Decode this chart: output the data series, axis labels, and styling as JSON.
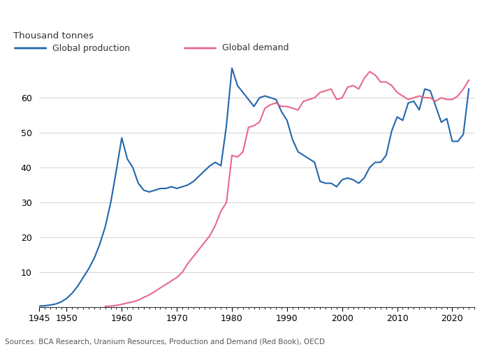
{
  "ylabel": "Thousand tonnes",
  "source": "Sources: BCA Research, Uranium Resources, Production and Demand (Red Book), OECD",
  "production_color": "#2166ac",
  "demand_color": "#e8688a",
  "ylim": [
    0,
    70
  ],
  "xlim": [
    1945,
    2024
  ],
  "yticks": [
    10,
    20,
    30,
    40,
    50,
    60
  ],
  "xticks": [
    1945,
    1950,
    1960,
    1970,
    1980,
    1990,
    2000,
    2010,
    2020
  ],
  "production": {
    "years": [
      1945,
      1946,
      1947,
      1948,
      1949,
      1950,
      1951,
      1952,
      1953,
      1954,
      1955,
      1956,
      1957,
      1958,
      1959,
      1960,
      1961,
      1962,
      1963,
      1964,
      1965,
      1966,
      1967,
      1968,
      1969,
      1970,
      1971,
      1972,
      1973,
      1974,
      1975,
      1976,
      1977,
      1978,
      1979,
      1980,
      1981,
      1982,
      1983,
      1984,
      1985,
      1986,
      1987,
      1988,
      1989,
      1990,
      1991,
      1992,
      1993,
      1994,
      1995,
      1996,
      1997,
      1998,
      1999,
      2000,
      2001,
      2002,
      2003,
      2004,
      2005,
      2006,
      2007,
      2008,
      2009,
      2010,
      2011,
      2012,
      2013,
      2014,
      2015,
      2016,
      2017,
      2018,
      2019,
      2020,
      2021,
      2022,
      2023
    ],
    "values": [
      0.3,
      0.4,
      0.6,
      0.9,
      1.5,
      2.5,
      4.0,
      6.0,
      8.5,
      11.0,
      14.0,
      18.0,
      23.0,
      30.0,
      39.0,
      48.5,
      42.5,
      40.0,
      35.5,
      33.5,
      33.0,
      33.5,
      34.0,
      34.0,
      34.5,
      34.0,
      34.5,
      35.0,
      36.0,
      37.5,
      39.0,
      40.5,
      41.5,
      40.5,
      52.0,
      68.5,
      63.5,
      61.5,
      59.5,
      57.5,
      60.0,
      60.5,
      60.0,
      59.5,
      56.0,
      53.5,
      48.0,
      44.5,
      43.5,
      42.5,
      41.5,
      36.0,
      35.5,
      35.5,
      34.5,
      36.5,
      37.0,
      36.5,
      35.5,
      37.0,
      40.0,
      41.5,
      41.5,
      43.5,
      50.5,
      54.5,
      53.5,
      58.5,
      59.0,
      56.5,
      62.5,
      62.0,
      57.5,
      53.0,
      54.0,
      47.5,
      47.5,
      49.5,
      62.5
    ]
  },
  "demand": {
    "years": [
      1957,
      1958,
      1959,
      1960,
      1961,
      1962,
      1963,
      1964,
      1965,
      1966,
      1967,
      1968,
      1969,
      1970,
      1971,
      1972,
      1973,
      1974,
      1975,
      1976,
      1977,
      1978,
      1979,
      1980,
      1981,
      1982,
      1983,
      1984,
      1985,
      1986,
      1987,
      1988,
      1989,
      1990,
      1991,
      1992,
      1993,
      1994,
      1995,
      1996,
      1997,
      1998,
      1999,
      2000,
      2001,
      2002,
      2003,
      2004,
      2005,
      2006,
      2007,
      2008,
      2009,
      2010,
      2011,
      2012,
      2013,
      2014,
      2015,
      2016,
      2017,
      2018,
      2019,
      2020,
      2021,
      2022,
      2023
    ],
    "values": [
      0.2,
      0.3,
      0.5,
      0.8,
      1.2,
      1.5,
      2.0,
      2.8,
      3.5,
      4.5,
      5.5,
      6.5,
      7.5,
      8.5,
      10.0,
      12.5,
      14.5,
      16.5,
      18.5,
      20.5,
      23.5,
      27.5,
      30.0,
      43.5,
      43.0,
      44.5,
      51.5,
      52.0,
      53.0,
      57.0,
      58.0,
      58.5,
      57.5,
      57.5,
      57.0,
      56.5,
      59.0,
      59.5,
      60.0,
      61.5,
      62.0,
      62.5,
      59.5,
      60.0,
      63.0,
      63.5,
      62.5,
      65.5,
      67.5,
      66.5,
      64.5,
      64.5,
      63.5,
      61.5,
      60.5,
      59.5,
      60.0,
      60.5,
      60.0,
      60.0,
      59.0,
      60.0,
      59.5,
      59.5,
      60.5,
      62.5,
      65.0
    ]
  }
}
